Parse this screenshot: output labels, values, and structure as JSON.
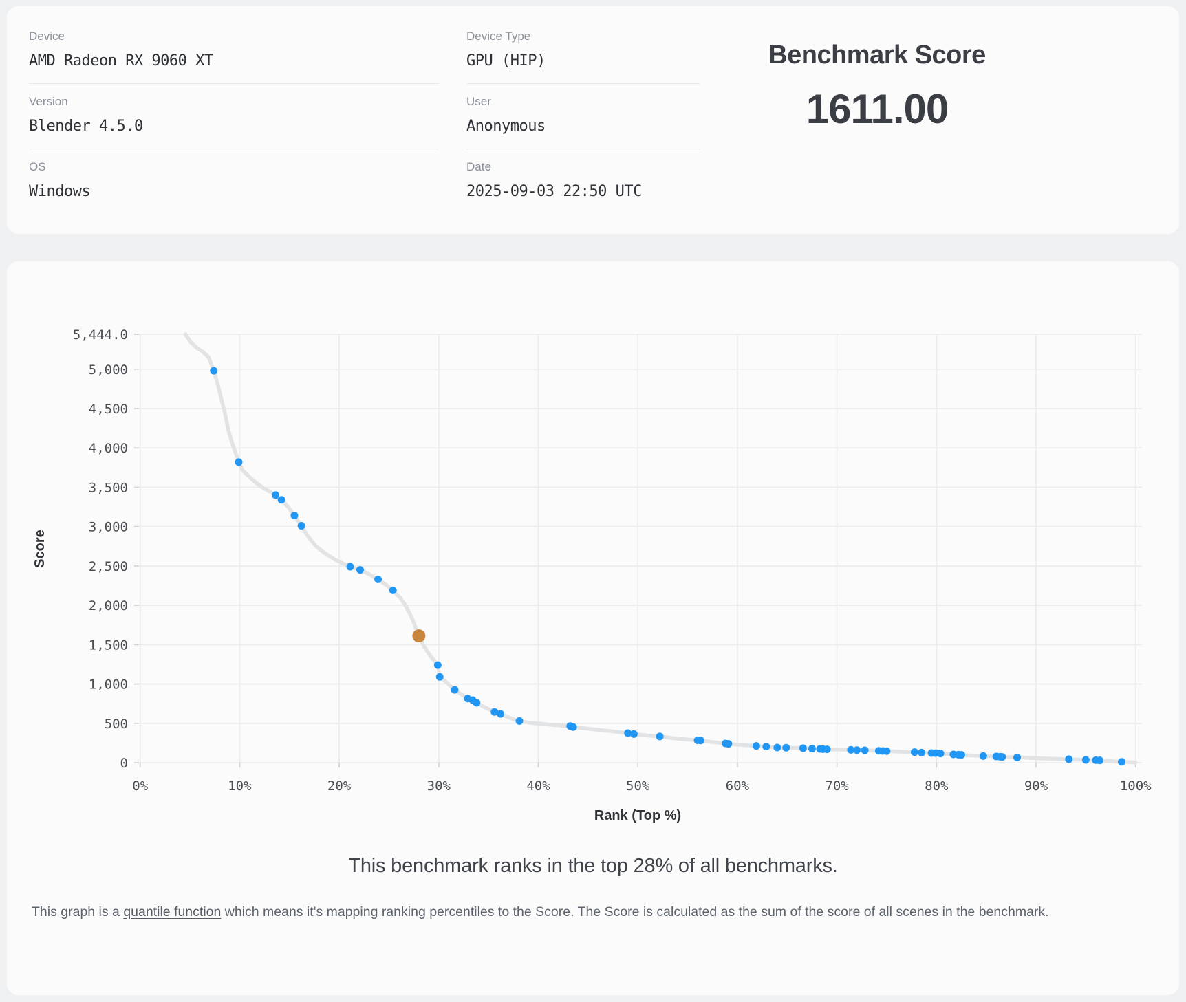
{
  "header": {
    "fields": [
      {
        "label": "Device",
        "value": "AMD Radeon RX 9060 XT"
      },
      {
        "label": "Version",
        "value": "Blender 4.5.0"
      },
      {
        "label": "OS",
        "value": "Windows"
      },
      {
        "label": "Device Type",
        "value": "GPU (HIP)"
      },
      {
        "label": "User",
        "value": "Anonymous"
      },
      {
        "label": "Date",
        "value": "2025-09-03 22:50 UTC"
      }
    ],
    "score_title": "Benchmark Score",
    "score_value": "1611.00"
  },
  "summary": "This benchmark ranks in the top 28% of all benchmarks.",
  "explanation": {
    "pre_link": "This graph is a ",
    "link_text": "quantile function",
    "post_link": " which means it's mapping ranking percentiles to the Score. The Score is calculated as the sum of the score of all scenes in the benchmark."
  },
  "chart_data": {
    "type": "line",
    "title": "",
    "xlabel": "Rank (Top %)",
    "ylabel": "Score",
    "xlim": [
      0,
      100
    ],
    "ylim": [
      0,
      5444
    ],
    "grid": true,
    "legend": "none",
    "x_ticks": [
      {
        "v": 0,
        "label": "0%"
      },
      {
        "v": 10,
        "label": "10%"
      },
      {
        "v": 20,
        "label": "20%"
      },
      {
        "v": 30,
        "label": "30%"
      },
      {
        "v": 40,
        "label": "40%"
      },
      {
        "v": 50,
        "label": "50%"
      },
      {
        "v": 60,
        "label": "60%"
      },
      {
        "v": 70,
        "label": "70%"
      },
      {
        "v": 80,
        "label": "80%"
      },
      {
        "v": 90,
        "label": "90%"
      },
      {
        "v": 100,
        "label": "100%"
      }
    ],
    "y_ticks": [
      {
        "v": 0,
        "label": "0"
      },
      {
        "v": 500,
        "label": "500"
      },
      {
        "v": 1000,
        "label": "1,000"
      },
      {
        "v": 1500,
        "label": "1,500"
      },
      {
        "v": 2000,
        "label": "2,000"
      },
      {
        "v": 2500,
        "label": "2,500"
      },
      {
        "v": 3000,
        "label": "3,000"
      },
      {
        "v": 3500,
        "label": "3,500"
      },
      {
        "v": 4000,
        "label": "4,000"
      },
      {
        "v": 4500,
        "label": "4,500"
      },
      {
        "v": 5000,
        "label": "5,000"
      },
      {
        "v": 5444,
        "label": "5,444.0"
      }
    ],
    "highlight": {
      "rank_pct": 28.0,
      "score": 1611.0
    },
    "scatter_points": [
      [
        7.4,
        4980
      ],
      [
        9.9,
        3820
      ],
      [
        13.6,
        3400
      ],
      [
        14.2,
        3340
      ],
      [
        15.5,
        3140
      ],
      [
        16.2,
        3010
      ],
      [
        21.1,
        2490
      ],
      [
        22.1,
        2450
      ],
      [
        23.9,
        2330
      ],
      [
        25.4,
        2190
      ],
      [
        29.9,
        1240
      ],
      [
        30.1,
        1090
      ],
      [
        31.6,
        925
      ],
      [
        32.9,
        815
      ],
      [
        33.4,
        795
      ],
      [
        33.8,
        760
      ],
      [
        35.6,
        645
      ],
      [
        36.2,
        620
      ],
      [
        38.1,
        530
      ],
      [
        43.2,
        465
      ],
      [
        43.5,
        452
      ],
      [
        49.0,
        376
      ],
      [
        49.6,
        364
      ],
      [
        52.2,
        333
      ],
      [
        56.0,
        284
      ],
      [
        56.3,
        282
      ],
      [
        58.8,
        245
      ],
      [
        59.1,
        239
      ],
      [
        61.9,
        213
      ],
      [
        62.9,
        204
      ],
      [
        64.0,
        192
      ],
      [
        64.9,
        190
      ],
      [
        66.6,
        184
      ],
      [
        67.5,
        178
      ],
      [
        68.3,
        175
      ],
      [
        68.6,
        172
      ],
      [
        69.0,
        169
      ],
      [
        71.4,
        163
      ],
      [
        72.0,
        160
      ],
      [
        72.8,
        157
      ],
      [
        74.2,
        151
      ],
      [
        74.6,
        149
      ],
      [
        75.0,
        146
      ],
      [
        77.8,
        134
      ],
      [
        78.5,
        128
      ],
      [
        79.5,
        122
      ],
      [
        79.9,
        121
      ],
      [
        80.4,
        117
      ],
      [
        81.7,
        105
      ],
      [
        82.2,
        102
      ],
      [
        82.5,
        99
      ],
      [
        84.7,
        84
      ],
      [
        86.0,
        79
      ],
      [
        86.4,
        75
      ],
      [
        86.6,
        73
      ],
      [
        88.1,
        67
      ],
      [
        93.3,
        44
      ],
      [
        95.0,
        35
      ],
      [
        96.0,
        32
      ],
      [
        96.4,
        29
      ],
      [
        98.6,
        11
      ]
    ],
    "line_anchors": [
      [
        4.55,
        5444
      ],
      [
        5.1,
        5340
      ],
      [
        5.7,
        5270
      ],
      [
        6.3,
        5220
      ],
      [
        6.9,
        5150
      ],
      [
        7.15,
        5060
      ],
      [
        7.4,
        4980
      ],
      [
        7.75,
        4830
      ],
      [
        8.1,
        4650
      ],
      [
        8.5,
        4450
      ],
      [
        8.85,
        4230
      ],
      [
        9.2,
        4080
      ],
      [
        9.55,
        3950
      ],
      [
        9.9,
        3820
      ],
      [
        10.3,
        3715
      ],
      [
        10.9,
        3640
      ],
      [
        11.6,
        3560
      ],
      [
        12.4,
        3490
      ],
      [
        13.0,
        3445
      ],
      [
        13.6,
        3400
      ],
      [
        14.2,
        3340
      ],
      [
        14.9,
        3245
      ],
      [
        15.5,
        3140
      ],
      [
        16.2,
        3010
      ],
      [
        16.9,
        2870
      ],
      [
        17.6,
        2760
      ],
      [
        18.5,
        2665
      ],
      [
        19.6,
        2580
      ],
      [
        20.4,
        2530
      ],
      [
        21.1,
        2490
      ],
      [
        22.1,
        2450
      ],
      [
        23.0,
        2395
      ],
      [
        23.9,
        2330
      ],
      [
        24.7,
        2260
      ],
      [
        25.4,
        2190
      ],
      [
        26.1,
        2100
      ],
      [
        26.7,
        1990
      ],
      [
        27.3,
        1840
      ],
      [
        28.0,
        1611
      ],
      [
        28.5,
        1480
      ],
      [
        29.2,
        1350
      ],
      [
        29.9,
        1240
      ],
      [
        30.1,
        1090
      ],
      [
        30.7,
        1030
      ],
      [
        31.6,
        925
      ],
      [
        32.9,
        815
      ],
      [
        33.4,
        795
      ],
      [
        33.8,
        760
      ],
      [
        34.7,
        700
      ],
      [
        35.6,
        645
      ],
      [
        36.2,
        620
      ],
      [
        37.1,
        570
      ],
      [
        38.1,
        530
      ],
      [
        39.0,
        510
      ],
      [
        40.0,
        497
      ],
      [
        41.5,
        480
      ],
      [
        43.2,
        465
      ],
      [
        43.5,
        452
      ],
      [
        45.0,
        432
      ],
      [
        46.5,
        410
      ],
      [
        48.0,
        390
      ],
      [
        49.0,
        376
      ],
      [
        49.6,
        364
      ],
      [
        51.0,
        345
      ],
      [
        52.2,
        333
      ],
      [
        54.0,
        305
      ],
      [
        56.0,
        284
      ],
      [
        56.3,
        282
      ],
      [
        57.5,
        262
      ],
      [
        58.8,
        245
      ],
      [
        59.1,
        239
      ],
      [
        60.5,
        225
      ],
      [
        61.9,
        213
      ],
      [
        62.9,
        204
      ],
      [
        64.0,
        192
      ],
      [
        64.9,
        190
      ],
      [
        66.6,
        184
      ],
      [
        67.5,
        178
      ],
      [
        68.3,
        175
      ],
      [
        68.6,
        172
      ],
      [
        69.0,
        169
      ],
      [
        70.2,
        166
      ],
      [
        71.4,
        163
      ],
      [
        72.0,
        160
      ],
      [
        72.8,
        157
      ],
      [
        74.2,
        151
      ],
      [
        74.6,
        149
      ],
      [
        75.0,
        146
      ],
      [
        76.4,
        140
      ],
      [
        77.8,
        134
      ],
      [
        78.5,
        128
      ],
      [
        79.5,
        122
      ],
      [
        79.9,
        121
      ],
      [
        80.4,
        117
      ],
      [
        81.0,
        111
      ],
      [
        81.7,
        105
      ],
      [
        82.2,
        102
      ],
      [
        82.5,
        99
      ],
      [
        83.6,
        91
      ],
      [
        84.7,
        84
      ],
      [
        86.0,
        79
      ],
      [
        86.4,
        75
      ],
      [
        86.6,
        73
      ],
      [
        88.1,
        67
      ],
      [
        89.5,
        60
      ],
      [
        91.5,
        51
      ],
      [
        93.3,
        44
      ],
      [
        95.0,
        35
      ],
      [
        96.0,
        32
      ],
      [
        96.4,
        29
      ],
      [
        97.5,
        20
      ],
      [
        98.6,
        11
      ],
      [
        99.4,
        6
      ],
      [
        100,
        3
      ]
    ],
    "colors": {
      "point_blue": "#2196f3",
      "highlight_orange": "#c8853e",
      "line_gray": "#e2e3e5",
      "gridline": "#e9ebec"
    }
  }
}
